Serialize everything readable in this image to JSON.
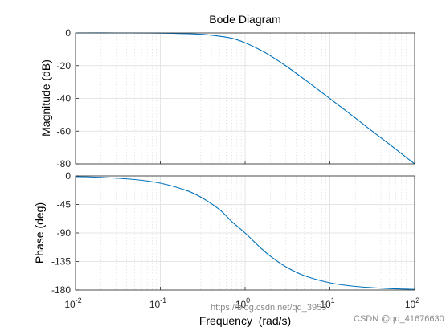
{
  "figure": {
    "title": "Bode Diagram",
    "watermark_left": "https://blog.csdn.net/qq_3955",
    "watermark_right": "CSDN @qq_41676630"
  },
  "chart_data": [
    {
      "type": "line",
      "panel": "magnitude",
      "title": "Bode Diagram",
      "xscale": "log",
      "xlim": [
        0.01,
        100
      ],
      "ylim": [
        -80,
        0
      ],
      "ylabel": "Magnitude (dB)",
      "yticks": [
        0,
        -20,
        -40,
        -60,
        -80
      ],
      "grid": true,
      "series": [
        {
          "color": "#0072BD",
          "x": [
            0.01,
            0.03,
            0.1,
            0.3,
            0.5,
            0.7,
            1,
            1.5,
            2,
            3,
            5,
            10,
            20,
            30,
            50,
            100
          ],
          "y": [
            0,
            0,
            -0.09,
            -0.8,
            -2.0,
            -3.3,
            -6.0,
            -10.3,
            -14.0,
            -20.0,
            -28.3,
            -40.1,
            -52.0,
            -59.1,
            -67.9,
            -80.0
          ]
        }
      ]
    },
    {
      "type": "line",
      "panel": "phase",
      "xscale": "log",
      "xlim": [
        0.01,
        100
      ],
      "ylim": [
        -180,
        0
      ],
      "xlabel": "Frequency  (rad/s)",
      "ylabel": "Phase (deg)",
      "yticks": [
        0,
        -45,
        -90,
        -135,
        -180
      ],
      "xticks": [
        "10^-2",
        "10^-1",
        "10^0",
        "10^1",
        "10^2"
      ],
      "grid": true,
      "series": [
        {
          "color": "#0072BD",
          "x": [
            0.01,
            0.02,
            0.05,
            0.1,
            0.2,
            0.3,
            0.5,
            0.7,
            1,
            1.5,
            2,
            3,
            5,
            10,
            20,
            50,
            100
          ],
          "y": [
            -1.1,
            -2.3,
            -5.7,
            -11.4,
            -22.6,
            -33.4,
            -53.1,
            -72.3,
            -90,
            -112.6,
            -126.9,
            -143.1,
            -157.4,
            -168.6,
            -174.3,
            -177.7,
            -178.9
          ]
        }
      ]
    }
  ]
}
